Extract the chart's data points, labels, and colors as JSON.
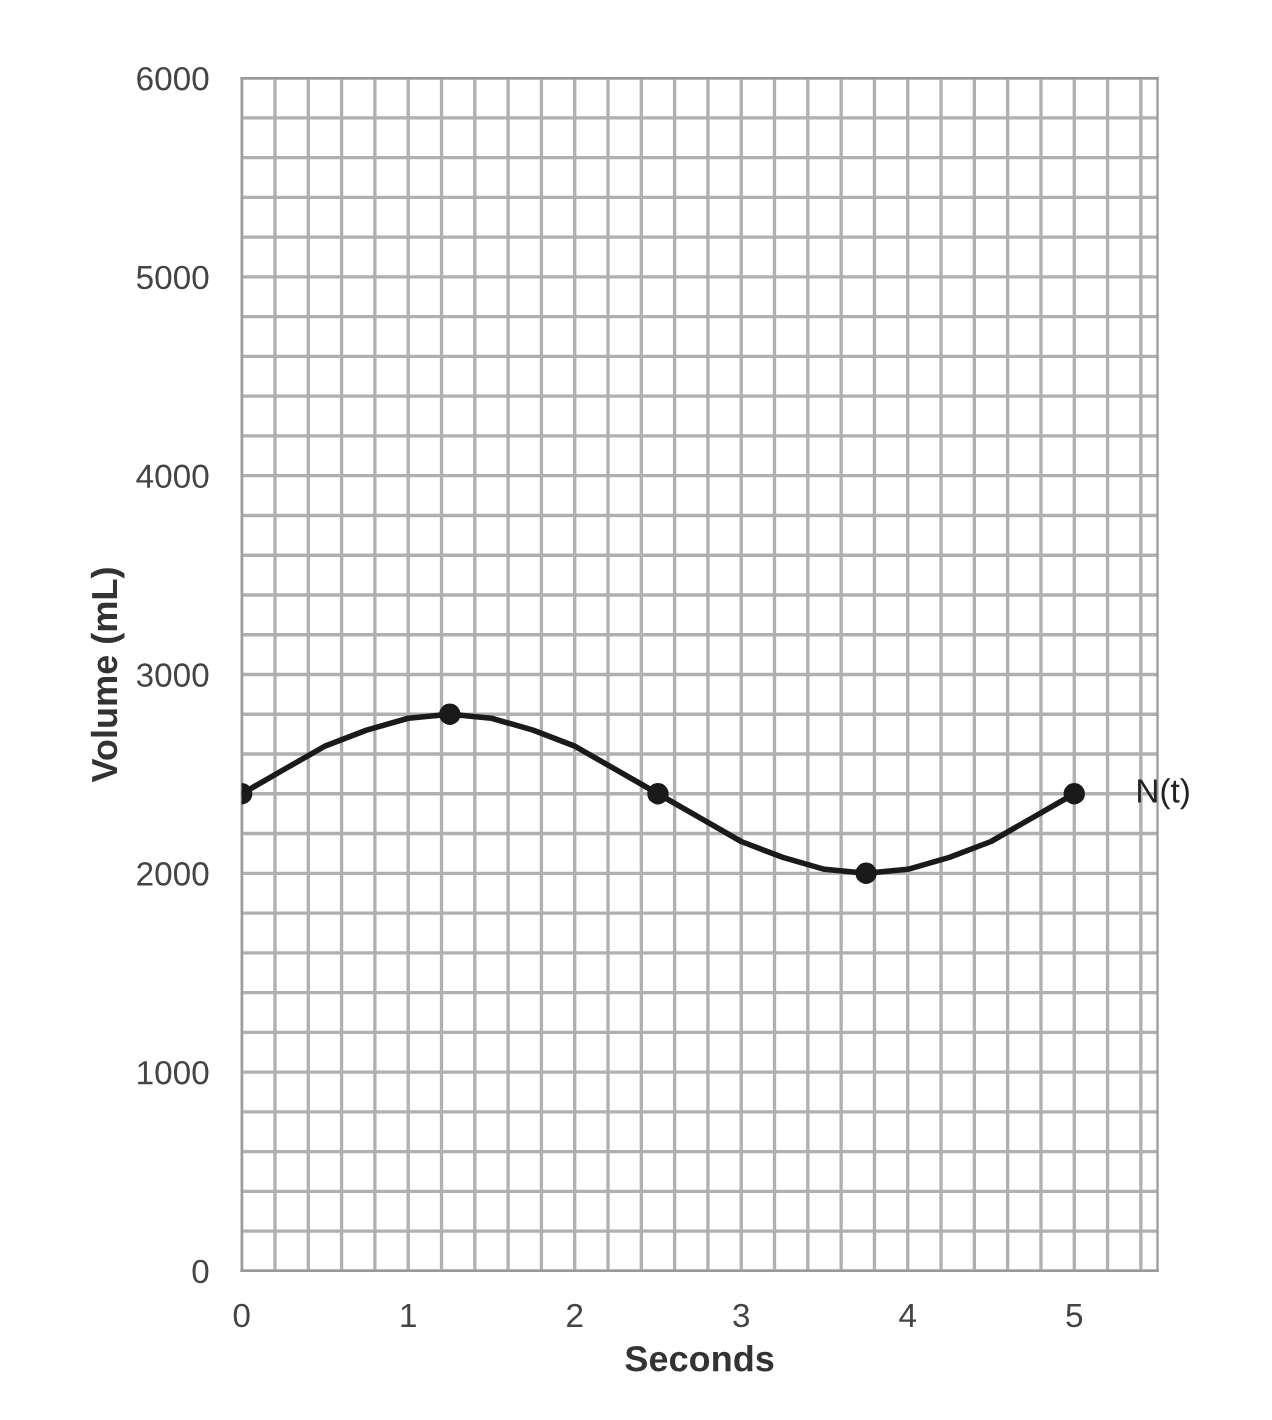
{
  "chart_data": {
    "type": "line",
    "xlabel": "Seconds",
    "ylabel": "Volume (mL)",
    "x": [
      0,
      0.25,
      0.5,
      0.75,
      1,
      1.25,
      1.5,
      1.75,
      2,
      2.25,
      2.5,
      2.75,
      3,
      3.25,
      3.5,
      3.75,
      4,
      4.25,
      4.5,
      4.75,
      5
    ],
    "series": [
      {
        "name": "N(t)",
        "color": "#1a1a1a",
        "marker": "none",
        "values": [
          2400,
          2520,
          2640,
          2720,
          2780,
          2800,
          2780,
          2720,
          2640,
          2520,
          2400,
          2280,
          2160,
          2080,
          2020,
          2000,
          2020,
          2080,
          2160,
          2280,
          2400
        ]
      },
      {
        "type": "scatter",
        "color": "#1a1a1a",
        "marker": "circle",
        "x": [
          0,
          1.25,
          2.5,
          3.75,
          5
        ],
        "values": [
          2400,
          2800,
          2400,
          2000,
          2400
        ]
      }
    ],
    "xlim": [
      0,
      5.5
    ],
    "ylim": [
      0,
      6000
    ],
    "xticks": [
      0,
      1,
      2,
      3,
      4,
      5
    ],
    "yticks": [
      0,
      1000,
      2000,
      3000,
      4000,
      5000,
      6000
    ],
    "grid": true,
    "line_style": "solid"
  }
}
